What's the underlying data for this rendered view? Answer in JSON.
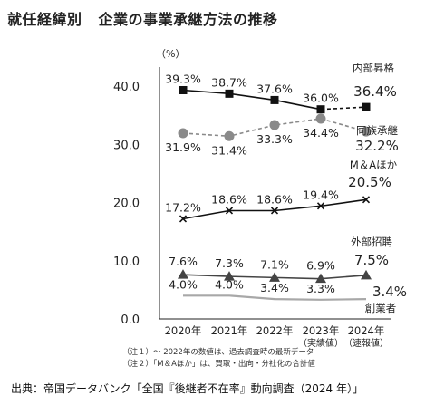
{
  "title_main": "就任経緯別",
  "title_sub": "企業の事業承継方法の推移",
  "chart_data": {
    "type": "line",
    "unit": "（%）",
    "categories": [
      "2020年",
      "2021年",
      "2022年",
      "2023年",
      "2024年"
    ],
    "category_sublabels": [
      "",
      "",
      "",
      "（実績値）",
      "（速報値）"
    ],
    "ylim": [
      0,
      40
    ],
    "yticks": [
      "0.0",
      "10.0",
      "20.0",
      "30.0",
      "40.0"
    ],
    "series": [
      {
        "name": "内部昇格",
        "values": [
          39.3,
          38.7,
          37.6,
          36.0,
          36.4
        ],
        "labels": [
          "39.3%",
          "38.7%",
          "37.6%",
          "36.0%",
          "36.4%"
        ],
        "marker": "square",
        "dash": "solid-last-dashed",
        "color": "#111111"
      },
      {
        "name": "同族承継",
        "values": [
          31.9,
          31.4,
          33.3,
          34.4,
          32.2
        ],
        "labels": [
          "31.9%",
          "31.4%",
          "33.3%",
          "34.4%",
          "32.2%"
        ],
        "marker": "circle",
        "dash": "dashed",
        "color": "#8a8a8a"
      },
      {
        "name": "M＆Aほか",
        "values": [
          17.2,
          18.6,
          18.6,
          19.4,
          20.5
        ],
        "labels": [
          "17.2%",
          "18.6%",
          "18.6%",
          "19.4%",
          "20.5%"
        ],
        "marker": "cross",
        "dash": "solid",
        "color": "#111111"
      },
      {
        "name": "外部招聘",
        "values": [
          7.6,
          7.3,
          7.1,
          6.9,
          7.5
        ],
        "labels": [
          "7.6%",
          "7.3%",
          "7.1%",
          "6.9%",
          "7.5%"
        ],
        "marker": "triangle",
        "dash": "solid",
        "color": "#444444"
      },
      {
        "name": "創業者",
        "values": [
          4.0,
          4.0,
          3.4,
          3.3,
          3.4
        ],
        "labels": [
          "4.0%",
          "4.0%",
          "3.4%",
          "3.3%",
          "3.4%"
        ],
        "marker": "none",
        "dash": "solid",
        "color": "#a8a8a8"
      }
    ]
  },
  "notes": [
    "（注１）～ 2022年の数値は、過去調査時の最新データ",
    "（注２）「M＆Aほか」は、買取・出向・分社化の合計値"
  ],
  "source": "出典：帝国データバンク「全国『後継者不在率』動向調査（2024 年）」"
}
